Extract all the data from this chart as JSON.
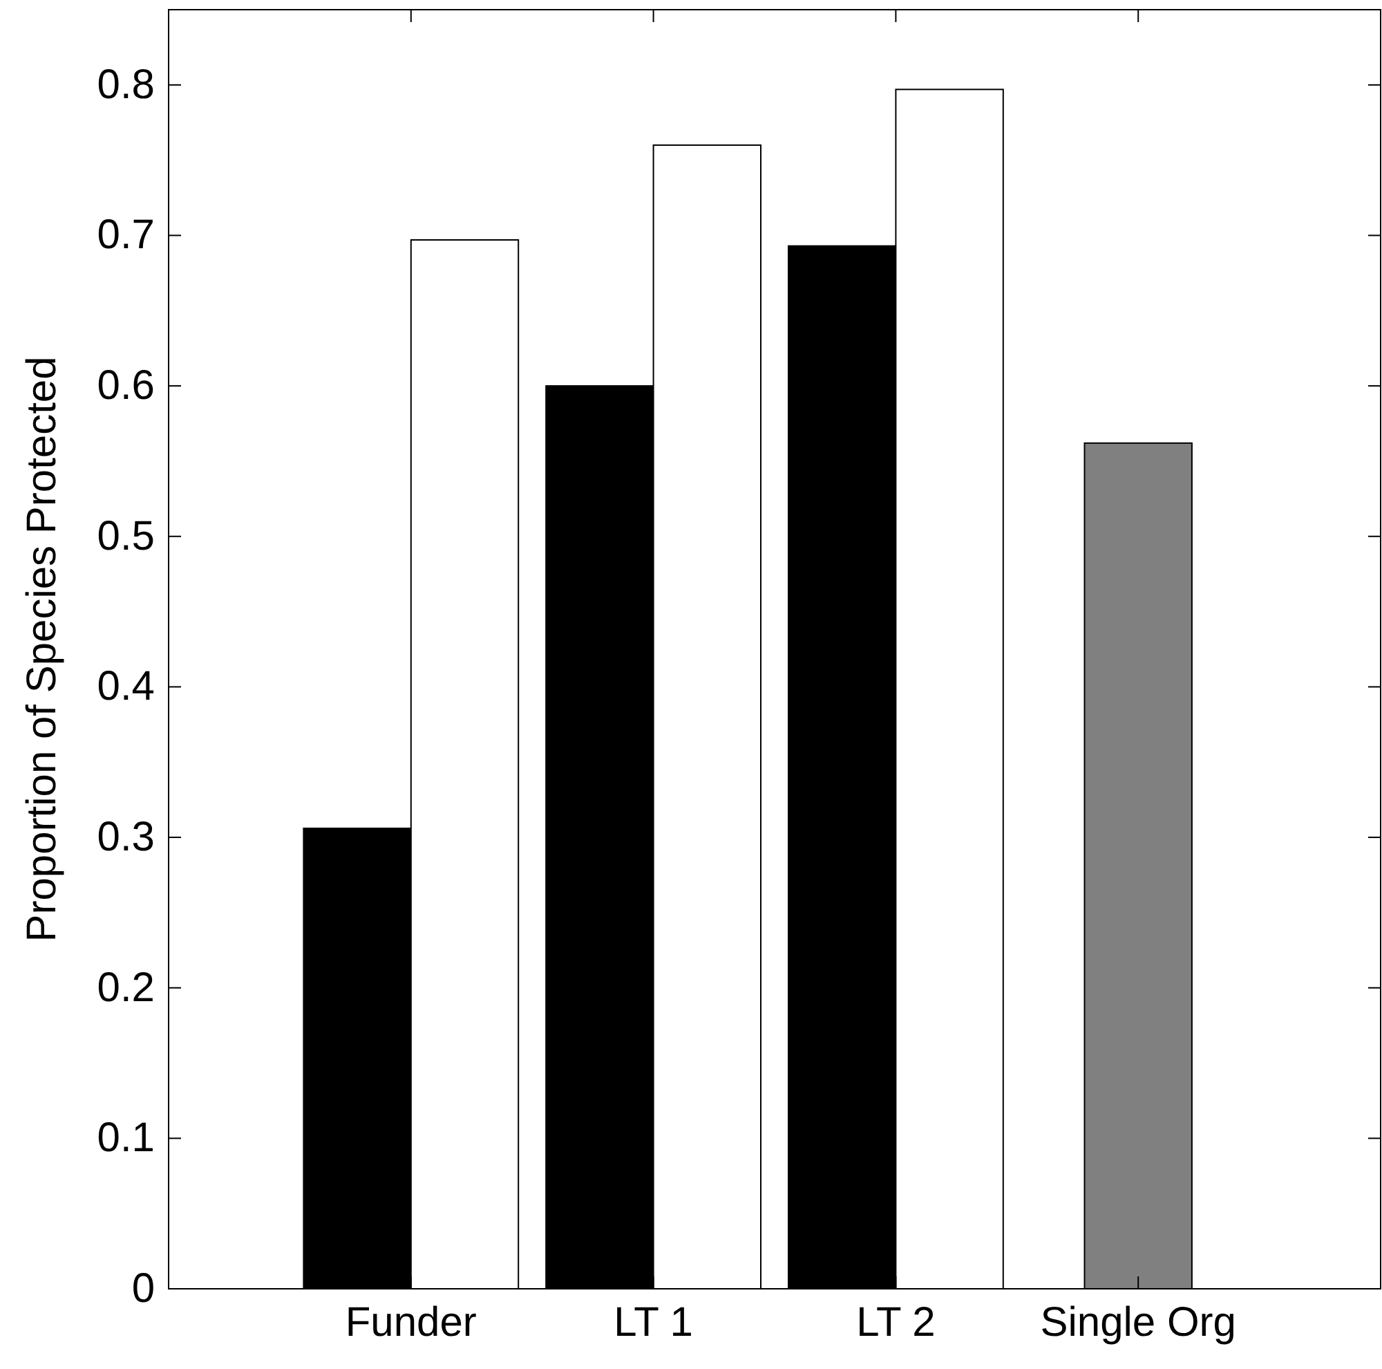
{
  "chart_data": {
    "type": "bar",
    "ylabel": "Proportion of Species Protected",
    "categories": [
      "Funder",
      "LT 1",
      "LT 2",
      "Single Org"
    ],
    "series": [
      {
        "color": "#000000",
        "values": [
          0.306,
          0.6,
          0.693,
          null
        ]
      },
      {
        "color": "#ffffff",
        "values": [
          0.697,
          0.76,
          0.797,
          null
        ]
      },
      {
        "color": "#808080",
        "values": [
          null,
          null,
          null,
          0.562
        ]
      }
    ],
    "ylim": [
      0,
      0.85
    ],
    "yticks": [
      0,
      0.1,
      0.2,
      0.3,
      0.4,
      0.5,
      0.6,
      0.7,
      0.8
    ]
  }
}
